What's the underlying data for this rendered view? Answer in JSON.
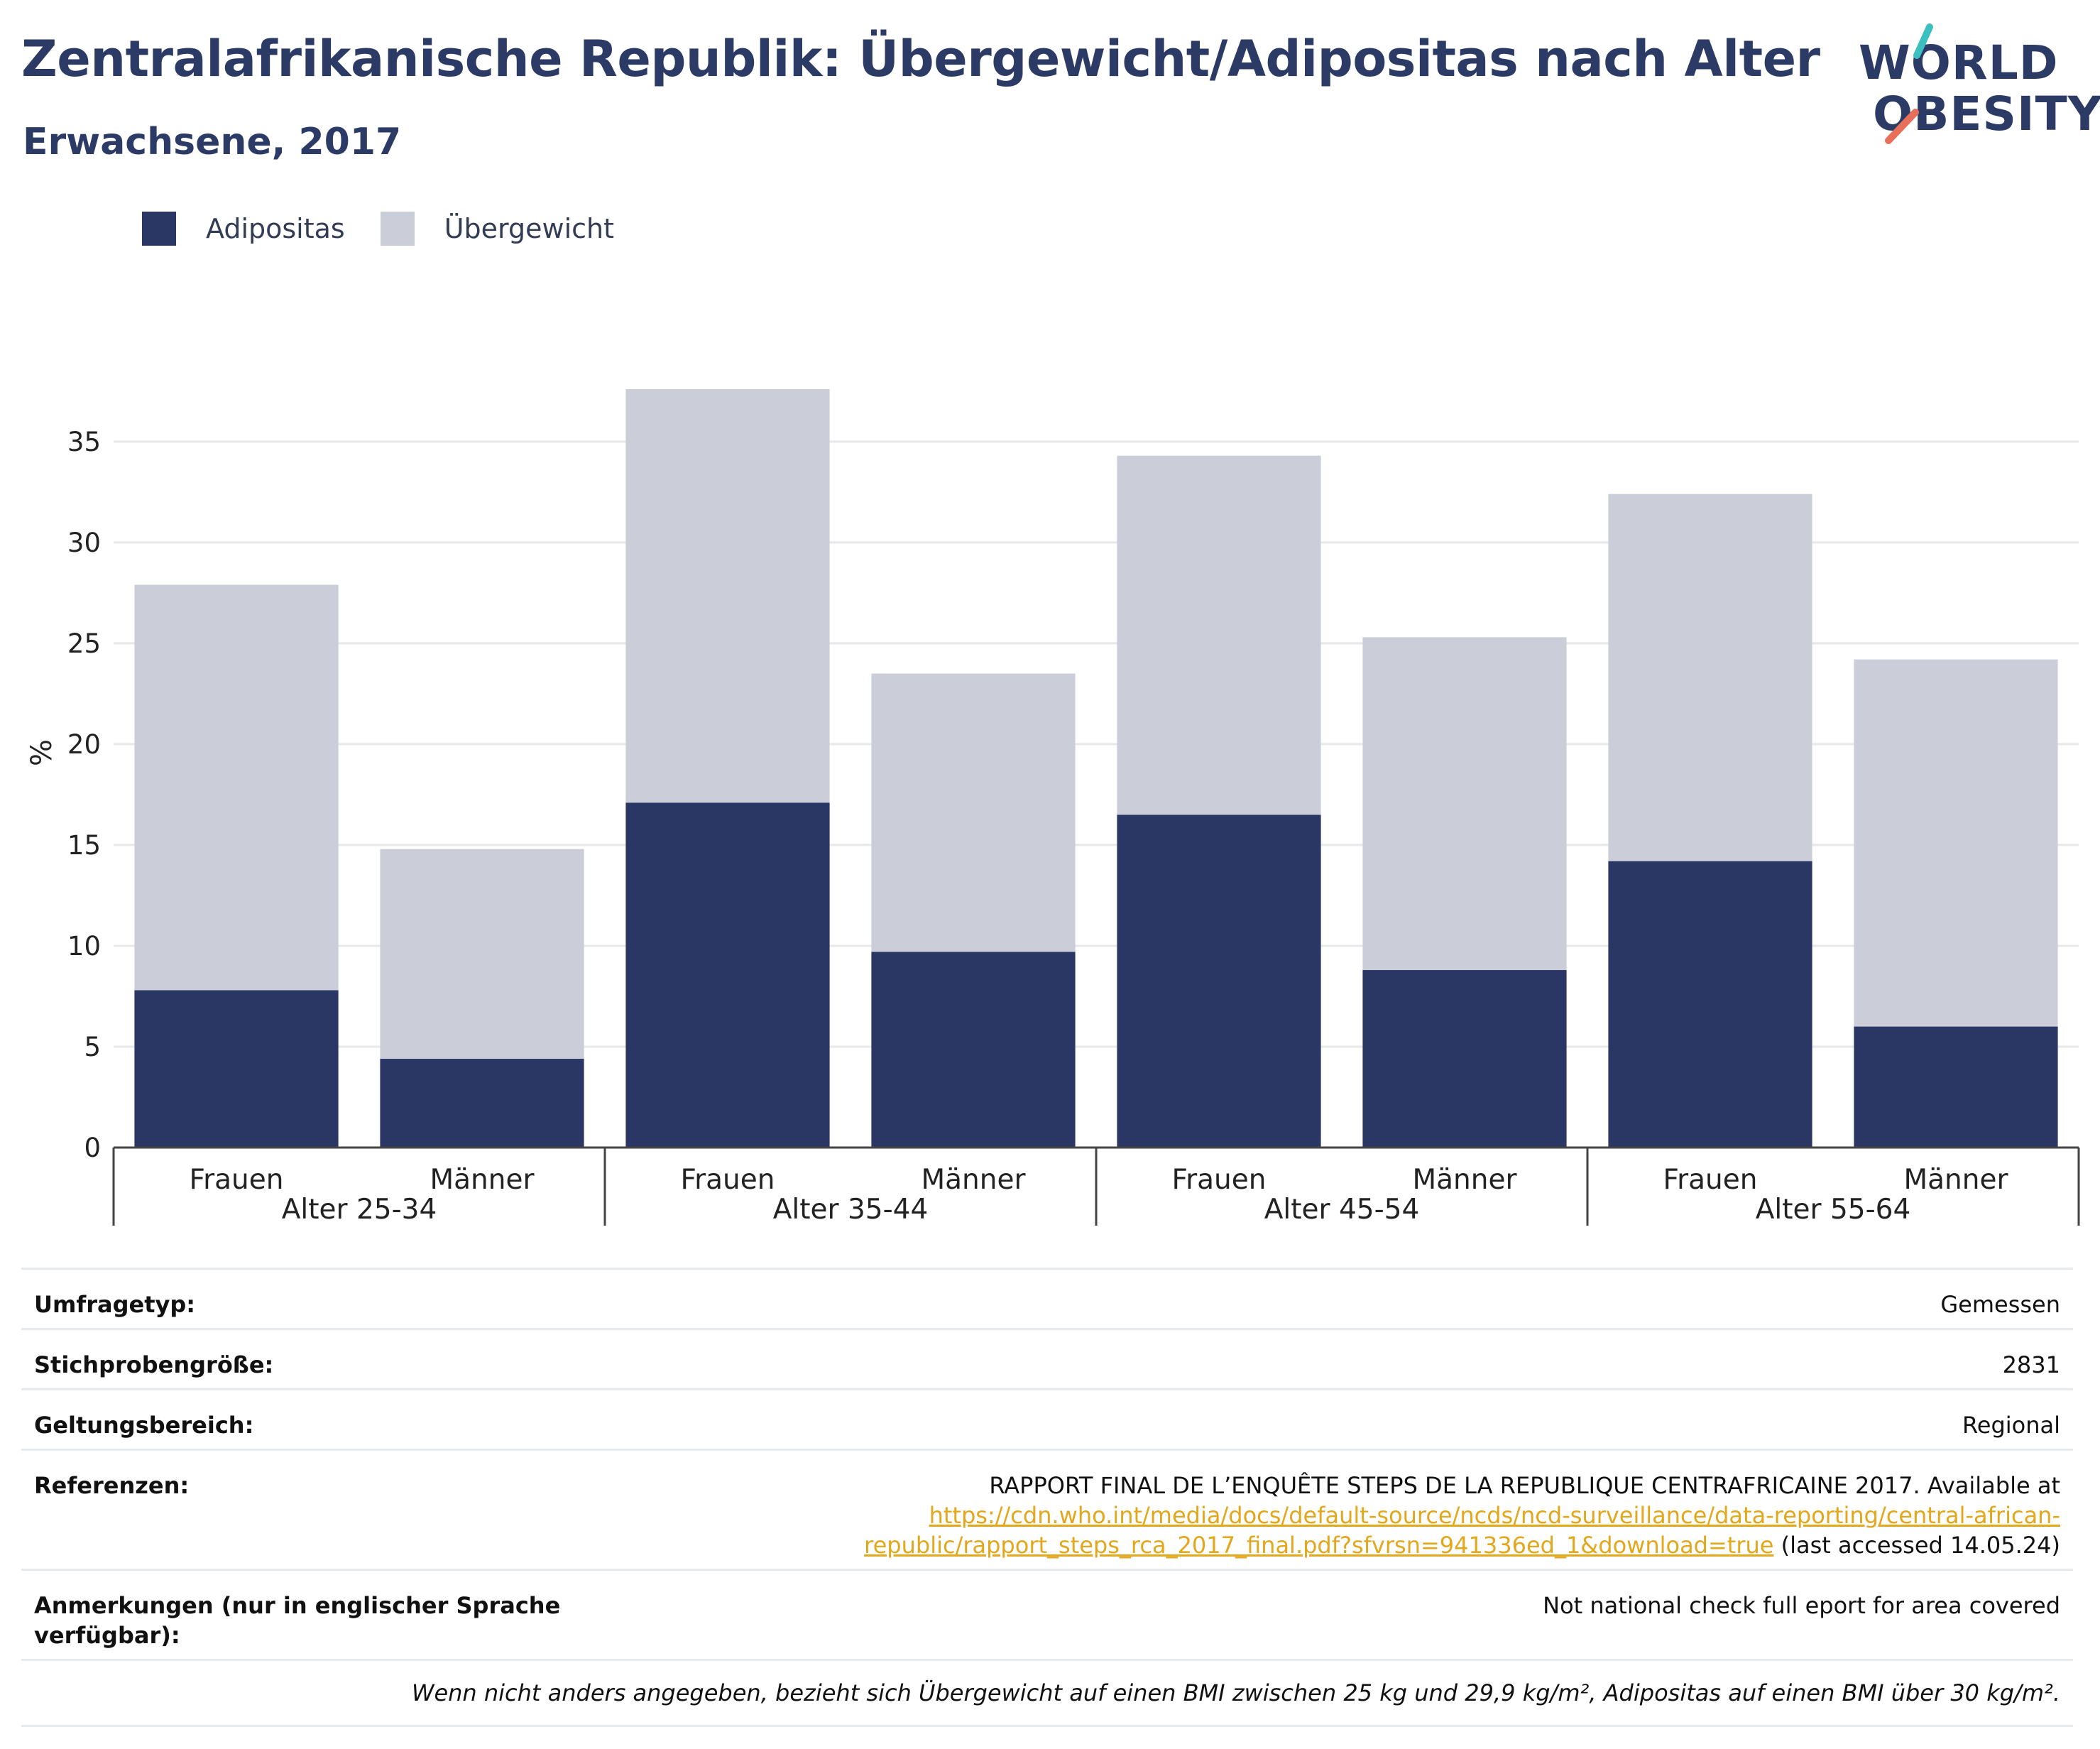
{
  "header": {
    "title": "Zentralafrikanische Republik: Übergewicht/Adipositas nach Alter",
    "subtitle": "Erwachsene, 2017"
  },
  "logo": {
    "line1": "WORLD",
    "line2": "OBESITY",
    "slash_colors": [
      "#3bbfbf",
      "#e8705a"
    ]
  },
  "colors": {
    "adipositas": "#2a3663",
    "uebergewicht": "#cbcdd9",
    "link": "#e3a71c"
  },
  "chart_data": {
    "type": "bar",
    "stacked": true,
    "ylabel": "%",
    "ylim": [
      0,
      37.6
    ],
    "yticks": [
      0,
      5,
      10,
      15,
      20,
      25,
      30,
      35
    ],
    "grid": true,
    "legend_position": "top-left",
    "groups": [
      "Alter 25-34",
      "Alter 35-44",
      "Alter 45-54",
      "Alter 55-64"
    ],
    "categories": [
      "Frauen",
      "Männer",
      "Frauen",
      "Männer",
      "Frauen",
      "Männer",
      "Frauen",
      "Männer"
    ],
    "series": [
      {
        "name": "Adipositas",
        "values": [
          7.8,
          4.4,
          17.1,
          9.7,
          16.5,
          8.8,
          14.2,
          6.0
        ]
      },
      {
        "name": "Übergewicht",
        "values": [
          20.1,
          10.4,
          20.5,
          13.8,
          17.8,
          16.5,
          18.2,
          18.2
        ]
      }
    ]
  },
  "info": {
    "survey_type_label": "Umfragetyp:",
    "survey_type": "Gemessen",
    "sample_size_label": "Stichprobengröße:",
    "sample_size": "2831",
    "scope_label": "Geltungsbereich:",
    "scope": "Regional",
    "references_label": "Referenzen:",
    "references_text": "RAPPORT FINAL DE L’ENQUÊTE STEPS DE LA REPUBLIQUE CENTRAFRICAINE 2017. Available at",
    "references_link_1": "https://cdn.who.int/media/docs/default-source/ncds/ncd-surveillance/data-reporting/central-african-",
    "references_link_2": "republic/rapport_steps_rca_2017_final.pdf?sfvrsn=941336ed_1&download=true",
    "references_suffix": " (last accessed 14.05.24)",
    "notes_label": "Anmerkungen (nur in englischer Sprache verfügbar):",
    "notes": "Not national check full eport for area covered",
    "footnote": "Wenn nicht anders angegeben, bezieht sich Übergewicht auf einen BMI zwischen 25 kg und 29,9 kg/m², Adipositas auf einen BMI über 30 kg/m²."
  }
}
